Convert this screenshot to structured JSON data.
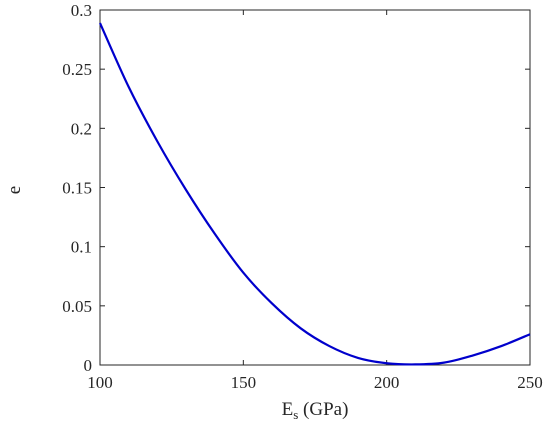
{
  "chart_data": {
    "type": "line",
    "xlabel_main": "E",
    "xlabel_sub": "s",
    "xlabel_rest": " (GPa)",
    "ylabel": "e",
    "xlim": [
      100,
      250
    ],
    "ylim": [
      0,
      0.3
    ],
    "xticks": [
      100,
      150,
      200,
      250
    ],
    "xtick_labels": [
      "100",
      "150",
      "200",
      "250"
    ],
    "yticks": [
      0,
      0.05,
      0.1,
      0.15,
      0.2,
      0.25,
      0.3
    ],
    "ytick_labels": [
      "0",
      "0.05",
      "0.1",
      "0.15",
      "0.2",
      "0.25",
      "0.3"
    ],
    "grid": false,
    "series": [
      {
        "color": "#0000cc",
        "x": [
          100,
          110,
          120,
          130,
          140,
          150,
          160,
          170,
          180,
          190,
          200,
          210,
          220,
          230,
          240,
          250
        ],
        "y": [
          0.289,
          0.235,
          0.189,
          0.148,
          0.111,
          0.078,
          0.052,
          0.031,
          0.016,
          0.006,
          0.0015,
          0.0005,
          0.002,
          0.008,
          0.016,
          0.026
        ]
      }
    ]
  }
}
